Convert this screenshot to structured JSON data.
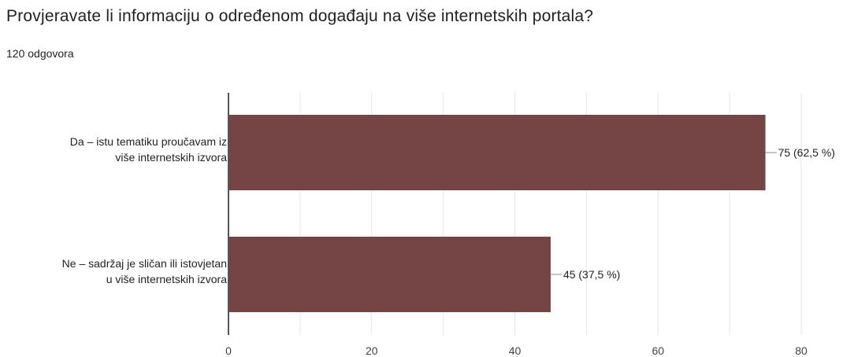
{
  "header": {
    "title": "Provjeravate li informaciju o određenom događaju na više internetskih portala?",
    "subtitle": "120 odgovora"
  },
  "colors": {
    "bar": "#744544",
    "grid": "#e6e6e6",
    "axis": "#555555"
  },
  "chart_data": {
    "type": "bar",
    "orientation": "horizontal",
    "title": "Provjeravate li informaciju o određenom događaju na više internetskih portala?",
    "subtitle": "120 odgovora",
    "categories": [
      [
        "Da – istu tematiku proučavam iz",
        "više internetskih izvora"
      ],
      [
        "Ne – sadržaj je sličan ili istovjetan",
        "u više internetskih izvora"
      ]
    ],
    "values": [
      75,
      45
    ],
    "data_labels": [
      "75 (62,5 %)",
      "45 (37,5 %)"
    ],
    "xlim": [
      0,
      80
    ],
    "xticks": [
      0,
      20,
      40,
      60,
      80
    ],
    "grid": true,
    "legend": "none"
  }
}
